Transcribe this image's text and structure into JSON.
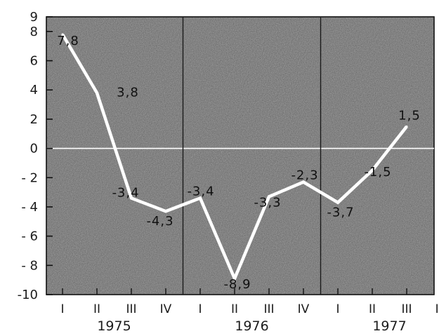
{
  "chart_data": {
    "type": "line",
    "x_quarter_labels": [
      "I",
      "II",
      "III",
      "IV",
      "I",
      "II",
      "III",
      "IV",
      "I",
      "II",
      "III",
      "IV"
    ],
    "year_labels": [
      "1975",
      "1976",
      "1977"
    ],
    "y_ticks": [
      9,
      8,
      6,
      4,
      2,
      0,
      -2,
      -4,
      -6,
      -8,
      -10
    ],
    "y_tick_labels": [
      "9",
      "8",
      "6",
      "4",
      "2",
      "0",
      "- 2",
      "- 4",
      "- 6",
      "- 8",
      "-10"
    ],
    "ylim": [
      -10,
      9
    ],
    "grid": "year separators and zero line",
    "series": [
      {
        "values": [
          7.8,
          3.8,
          -3.4,
          -4.3,
          -3.4,
          -8.9,
          -3.3,
          -2.3,
          -3.7,
          -1.5,
          1.5
        ],
        "labels": [
          "7,8",
          "3,8",
          "-3,4",
          "-4,3",
          "-3,4",
          "-8,9",
          "-3,3",
          "-2,3",
          "-3,7",
          "-1,5",
          "1,5"
        ]
      }
    ],
    "colors": {
      "background": "#a8a8a8",
      "line": "#ffffff",
      "frame": "#111111"
    }
  }
}
